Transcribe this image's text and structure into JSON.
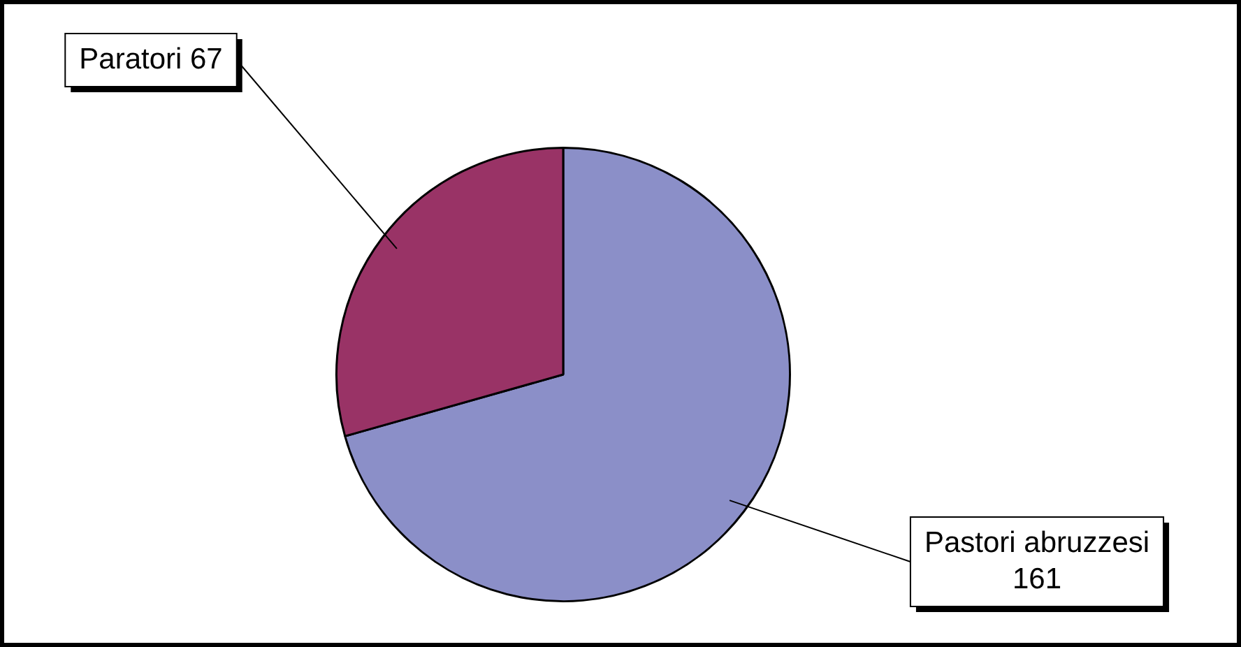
{
  "chart_data": {
    "type": "pie",
    "categories": [
      "Pastori abruzzesi",
      "Paratori"
    ],
    "values": [
      161,
      67
    ],
    "colors": [
      "#8b8fc8",
      "#993366"
    ],
    "value_labels": [
      "161",
      "67"
    ],
    "legend": false
  }
}
